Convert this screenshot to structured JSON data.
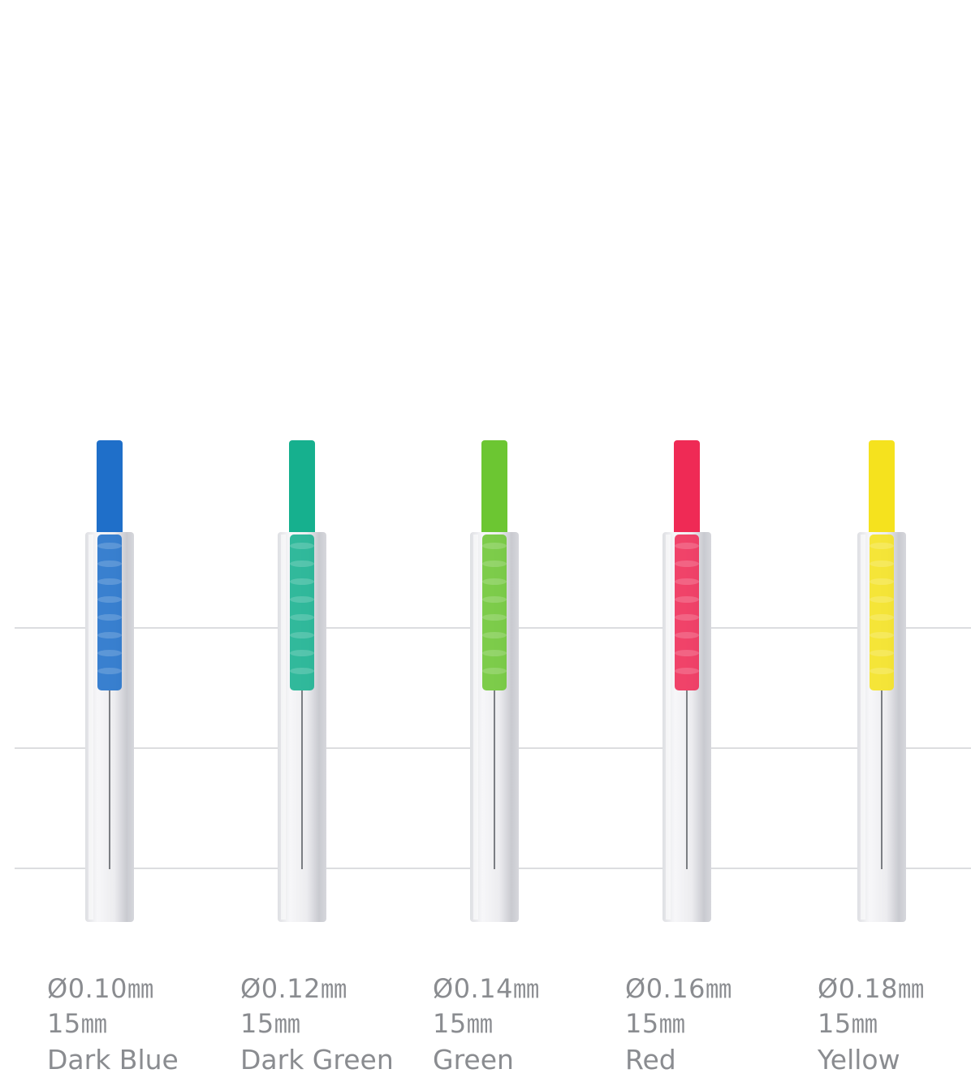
{
  "needles": [
    {
      "diameter": "Ø0.10㎜",
      "length": "15㎜",
      "color_name": "Dark Blue",
      "color": "#1f6fc9"
    },
    {
      "diameter": "Ø0.12㎜",
      "length": "15㎜",
      "color_name": "Dark Green",
      "color": "#16b08e"
    },
    {
      "diameter": "Ø0.14㎜",
      "length": "15㎜",
      "color_name": "Green",
      "color": "#6cc632"
    },
    {
      "diameter": "Ø0.16㎜",
      "length": "15㎜",
      "color_name": "Red",
      "color": "#ef2a55"
    },
    {
      "diameter": "Ø0.18㎜",
      "length": "15㎜",
      "color_name": "Yellow",
      "color": "#f5e21e"
    }
  ]
}
